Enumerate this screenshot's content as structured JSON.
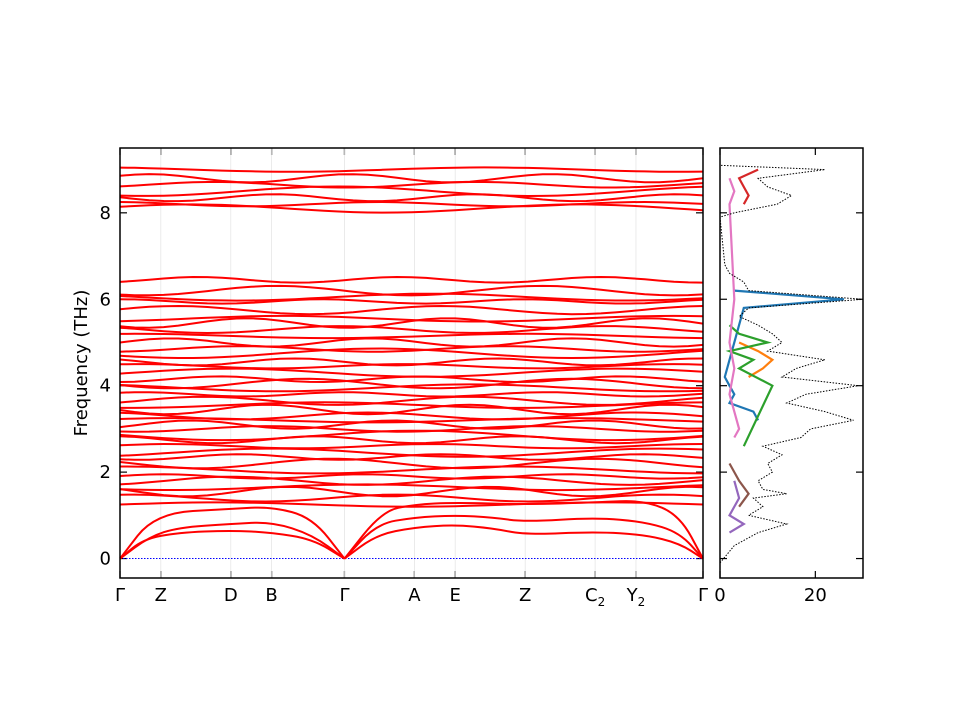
{
  "chart_data": [
    {
      "type": "line",
      "panel": "phonon-band-structure",
      "ylabel": "Frequency (THz)",
      "ylim": [
        -0.45,
        9.5
      ],
      "yticks": [
        0,
        2,
        4,
        6,
        8
      ],
      "path_positions": [
        0.0,
        0.07,
        0.19,
        0.26,
        0.385,
        0.505,
        0.575,
        0.695,
        0.815,
        0.885,
        1.0
      ],
      "xtick_labels": [
        "Γ",
        "Z",
        "D",
        "B",
        "Γ",
        "A",
        "E",
        "Z",
        "C",
        "Y",
        "Γ"
      ],
      "xtick_subscripts": [
        "",
        "",
        "",
        "",
        "",
        "",
        "",
        "",
        "2",
        "2",
        ""
      ],
      "band_color": "#ff0000",
      "zero_line_color": "#0000ff",
      "acoustic_branches": [
        {
          "name": "",
          "x": [
            0.0,
            0.04,
            0.1,
            0.19,
            0.26,
            0.33,
            0.385
          ],
          "y": [
            0,
            0.45,
            0.6,
            0.65,
            0.6,
            0.45,
            0
          ]
        },
        {
          "name": "",
          "x": [
            0.0,
            0.05,
            0.1,
            0.19,
            0.26,
            0.33,
            0.385
          ],
          "y": [
            0,
            0.5,
            0.72,
            0.8,
            0.85,
            0.55,
            0
          ]
        },
        {
          "name": "",
          "x": [
            0.0,
            0.06,
            0.19,
            0.26,
            0.33,
            0.385
          ],
          "y": [
            0,
            1.05,
            1.15,
            1.2,
            0.95,
            0
          ]
        },
        {
          "name": "",
          "x": [
            0.385,
            0.44,
            0.505,
            0.575,
            0.64,
            0.695,
            0.815,
            0.9,
            0.96,
            1.0
          ],
          "y": [
            0,
            0.55,
            0.72,
            0.78,
            0.7,
            0.55,
            0.62,
            0.55,
            0.35,
            0
          ]
        },
        {
          "name": "",
          "x": [
            0.385,
            0.44,
            0.505,
            0.575,
            0.64,
            0.695,
            0.815,
            0.9,
            0.96,
            1.0
          ],
          "y": [
            0,
            0.8,
            0.95,
            1.0,
            0.95,
            0.85,
            0.95,
            0.85,
            0.6,
            0
          ]
        },
        {
          "name": "",
          "x": [
            0.385,
            0.45,
            0.505,
            0.575,
            0.695,
            0.815,
            0.9,
            0.96,
            1.0
          ],
          "y": [
            0,
            1.1,
            1.25,
            1.3,
            1.25,
            1.3,
            1.35,
            1.0,
            0
          ]
        }
      ],
      "optical_band_levels_thz": [
        1.25,
        1.4,
        1.55,
        1.65,
        1.8,
        1.9,
        2.05,
        2.2,
        2.35,
        2.45,
        2.6,
        2.75,
        2.85,
        3.0,
        3.1,
        3.2,
        3.3,
        3.45,
        3.55,
        3.65,
        3.8,
        3.95,
        4.05,
        4.15,
        4.3,
        4.45,
        4.55,
        4.75,
        4.85,
        5.0,
        5.15,
        5.3,
        5.45,
        5.55,
        5.75,
        5.95,
        6.05,
        6.2,
        6.45,
        8.1,
        8.2,
        8.35,
        8.5,
        8.65,
        8.8,
        9.0
      ]
    },
    {
      "type": "line",
      "panel": "phonon-dos",
      "xlim": [
        0,
        30
      ],
      "xticks": [
        0,
        20
      ],
      "ylim": [
        -0.45,
        9.5
      ],
      "total_dos": {
        "name": "",
        "color": "#000000",
        "freq": [
          -0.1,
          0.3,
          0.6,
          0.8,
          1.0,
          1.2,
          1.4,
          1.5,
          1.6,
          1.8,
          2.0,
          2.2,
          2.4,
          2.6,
          2.8,
          3.0,
          3.2,
          3.4,
          3.6,
          3.8,
          4.0,
          4.2,
          4.4,
          4.6,
          4.8,
          5.0,
          5.2,
          5.4,
          5.6,
          5.8,
          6.0,
          6.2,
          6.4,
          6.6,
          6.8,
          7.9,
          8.0,
          8.2,
          8.4,
          8.6,
          8.8,
          9.0,
          9.1
        ],
        "dos": [
          0,
          3,
          8,
          14,
          6,
          9,
          7,
          14,
          9,
          8,
          11,
          10,
          13,
          9,
          17,
          19,
          28,
          22,
          14,
          18,
          29,
          13,
          16,
          22,
          10,
          13,
          11,
          8,
          4,
          6,
          32,
          6,
          5,
          2,
          1,
          0,
          3,
          12,
          15,
          10,
          8,
          22,
          0
        ]
      },
      "projected_dos": [
        {
          "name": "",
          "color": "#1f77b4",
          "freq": [
            3.2,
            3.4,
            3.6,
            3.8,
            4.0,
            4.2,
            5.8,
            6.0,
            6.2
          ],
          "dos": [
            8,
            7,
            2,
            3,
            2,
            1,
            5,
            26,
            3
          ]
        },
        {
          "name": "",
          "color": "#ff7f0e",
          "freq": [
            4.2,
            4.4,
            4.6,
            4.8,
            5.0
          ],
          "dos": [
            6,
            9,
            11,
            8,
            4
          ]
        },
        {
          "name": "",
          "color": "#2ca02c",
          "freq": [
            2.6,
            4.0,
            4.4,
            4.6,
            4.8,
            5.0,
            5.2,
            5.4
          ],
          "dos": [
            5,
            11,
            4,
            7,
            2,
            10,
            4,
            2
          ]
        },
        {
          "name": "",
          "color": "#d62728",
          "freq": [
            8.2,
            8.4,
            8.6,
            8.8,
            9.0
          ],
          "dos": [
            5,
            6,
            5,
            4,
            8
          ]
        },
        {
          "name": "",
          "color": "#9467bd",
          "freq": [
            0.6,
            0.8,
            1.0,
            1.4,
            1.8
          ],
          "dos": [
            2,
            5,
            2,
            4,
            3
          ]
        },
        {
          "name": "",
          "color": "#8c564b",
          "freq": [
            1.2,
            1.5,
            1.8,
            2.0,
            2.2
          ],
          "dos": [
            4,
            6,
            4,
            3,
            2
          ]
        },
        {
          "name": "",
          "color": "#e377c2",
          "freq": [
            2.8,
            3.0,
            3.4,
            3.8,
            4.4,
            5.0,
            6.0,
            8.2,
            8.5,
            8.8
          ],
          "dos": [
            3,
            4,
            3,
            2,
            3,
            2,
            3,
            2,
            3,
            2
          ]
        }
      ]
    }
  ]
}
